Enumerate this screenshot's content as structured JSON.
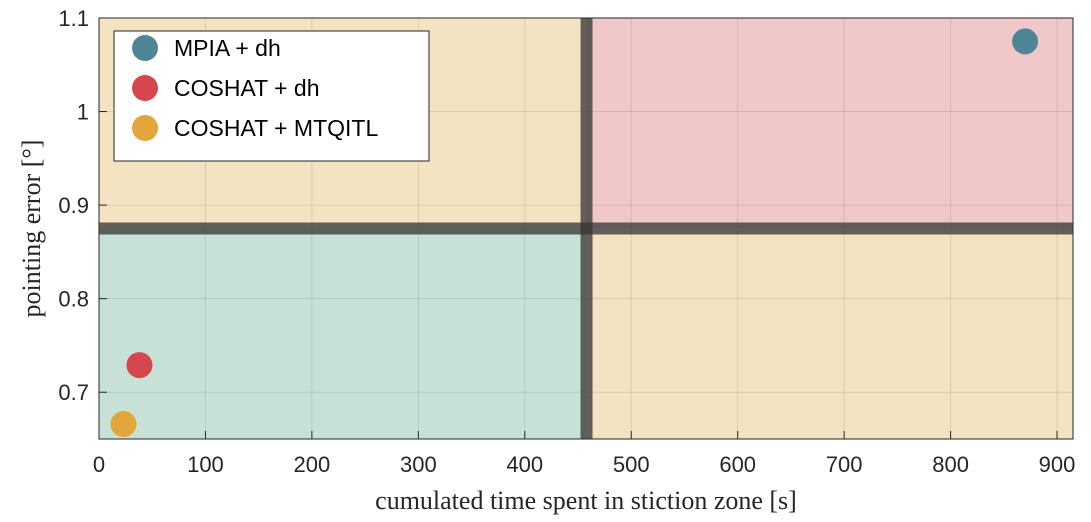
{
  "chart_data": {
    "type": "scatter",
    "title": "",
    "xlabel": "cumulated time spent in stiction zone [s]",
    "ylabel": "pointing error [°]",
    "xlim": [
      0,
      915
    ],
    "ylim": [
      0.65,
      1.1
    ],
    "xticks": [
      0,
      100,
      200,
      300,
      400,
      500,
      600,
      700,
      800,
      900
    ],
    "yticks": [
      0.7,
      0.8,
      0.9,
      1,
      1.1
    ],
    "xtick_labels": [
      "0",
      "100",
      "200",
      "300",
      "400",
      "500",
      "600",
      "700",
      "800",
      "900"
    ],
    "ytick_labels": [
      "0.7",
      "0.8",
      "0.9",
      "1",
      "1.1"
    ],
    "grid": true,
    "legend_position": "top-left",
    "thresholds": {
      "x": 458,
      "y": 0.875
    },
    "regions": [
      {
        "x": [
          0,
          458
        ],
        "y": [
          0.65,
          0.875
        ],
        "color": "#c8e1d6"
      },
      {
        "x": [
          0,
          458
        ],
        "y": [
          0.875,
          1.1
        ],
        "color": "#f4e3c3"
      },
      {
        "x": [
          458,
          915
        ],
        "y": [
          0.875,
          1.1
        ],
        "color": "#f1c8ca"
      },
      {
        "x": [
          458,
          915
        ],
        "y": [
          0.65,
          0.875
        ],
        "color": "#f4e3c3"
      }
    ],
    "series": [
      {
        "name": "MPIA + dh",
        "color": "#4f8696",
        "points": [
          {
            "x": 870,
            "y": 1.075
          }
        ]
      },
      {
        "name": "COSHAT + dh",
        "color": "#d5464e",
        "points": [
          {
            "x": 38,
            "y": 0.729
          }
        ]
      },
      {
        "name": "COSHAT + MTQITL",
        "color": "#e3a63a",
        "points": [
          {
            "x": 23,
            "y": 0.666
          }
        ]
      }
    ]
  }
}
